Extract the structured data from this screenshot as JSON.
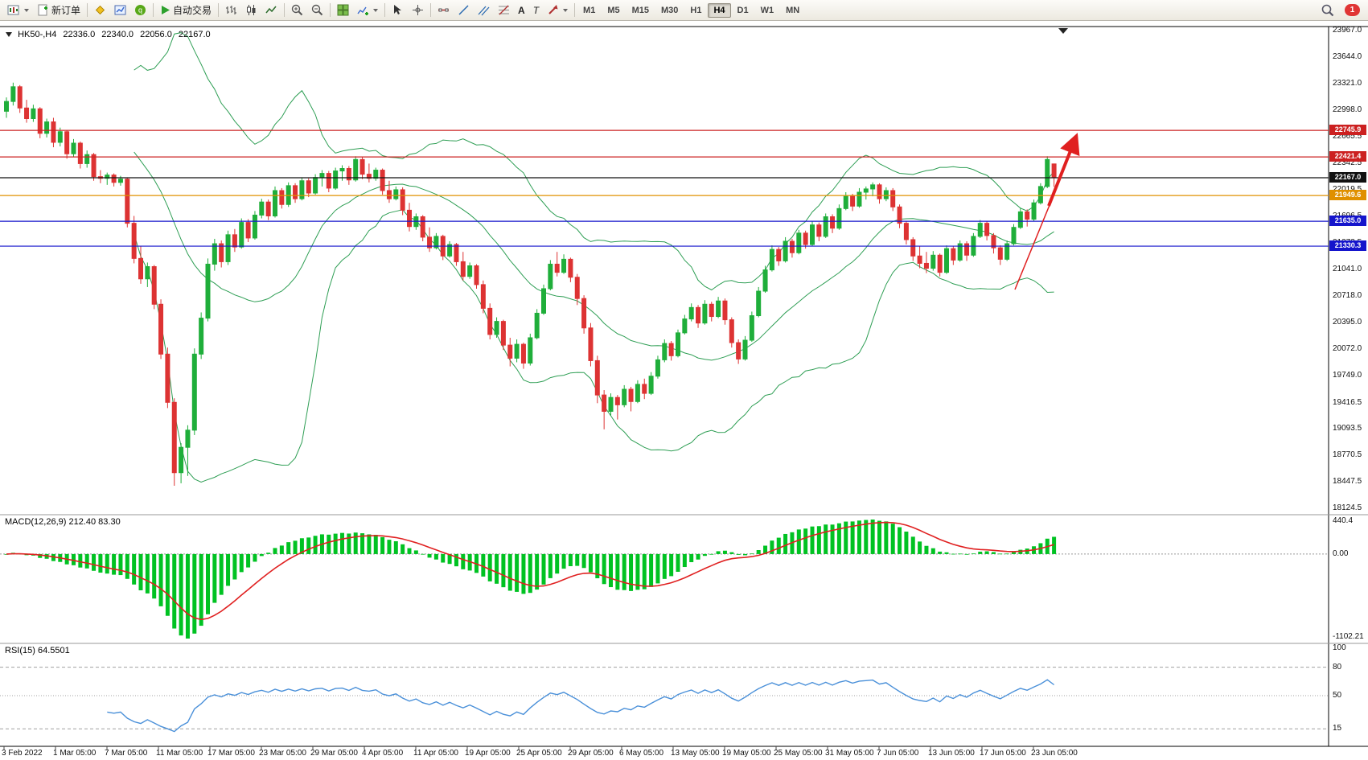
{
  "toolbar": {
    "new_order_label": "新订单",
    "autotrade_label": "自动交易",
    "text_tool_label": "A",
    "label_tool_label": "T",
    "timeframes": [
      "M1",
      "M5",
      "M15",
      "M30",
      "H1",
      "H4",
      "D1",
      "W1",
      "MN"
    ],
    "active_timeframe": "H4",
    "notification_count": "1"
  },
  "chart_header": {
    "symbol": "HK50-,H4",
    "open": "22336.0",
    "high": "22340.0",
    "low": "22056.0",
    "close": "22167.0"
  },
  "chart_data": {
    "type": "candlestick",
    "symbol": "HK50-",
    "timeframe": "H4",
    "last_ohlc": [
      22336.0,
      22340.0,
      22056.0,
      22167.0
    ],
    "ylim": [
      18124.5,
      23967.0
    ],
    "price_ticks": [
      "23967.0",
      "23644.0",
      "23321.0",
      "22998.0",
      "22665.5",
      "22342.5",
      "22019.5",
      "21696.5",
      "21373.5",
      "21041.0",
      "20718.0",
      "20395.0",
      "20072.0",
      "19749.0",
      "19416.5",
      "19093.5",
      "18770.5",
      "18447.5",
      "18124.5"
    ],
    "time_labels": [
      "3 Feb 2022",
      "1 Mar 05:00",
      "7 Mar 05:00",
      "11 Mar 05:00",
      "17 Mar 05:00",
      "23 Mar 05:00",
      "29 Mar 05:00",
      "4 Apr 05:00",
      "11 Apr 05:00",
      "19 Apr 05:00",
      "25 Apr 05:00",
      "29 Apr 05:00",
      "6 May 05:00",
      "13 May 05:00",
      "19 May 05:00",
      "25 May 05:00",
      "31 May 05:00",
      "7 Jun 05:00",
      "13 Jun 05:00",
      "17 Jun 05:00",
      "23 Jun 05:00"
    ],
    "colors": {
      "up": "#1fae3a",
      "down": "#dd3333",
      "bollinger": "#2e9e54",
      "arrow": "#e02020"
    },
    "overlays": {
      "bollinger": {
        "period": 20,
        "deviation": 2
      },
      "horizontal_levels": [
        {
          "price": 22745.9,
          "label": "22745.9",
          "color": "#cc2020"
        },
        {
          "price": 22421.4,
          "label": "22421.4",
          "color": "#cc2020"
        },
        {
          "price": 22167.0,
          "label": "22167.0",
          "color": "#111111"
        },
        {
          "price": 21949.6,
          "label": "21949.6",
          "color": "#e09000"
        },
        {
          "price": 21635.0,
          "label": "21635.0",
          "color": "#1515cc"
        },
        {
          "price": 21330.3,
          "label": "21330.3",
          "color": "#1515cc"
        }
      ]
    },
    "subcharts": [
      {
        "type": "macd",
        "label": "MACD(12,26,9) 212.40 83.30",
        "params": [
          12,
          26,
          9
        ],
        "current_values": [
          212.4,
          83.3
        ],
        "axis_labels": {
          "top": "440.4",
          "zero": "0.00",
          "bottom": "-1102.21"
        },
        "histogram_color": "#00c222",
        "signal_color": "#e02020"
      },
      {
        "type": "rsi",
        "label": "RSI(15) 64.5501",
        "period": 15,
        "current_value": 64.5501,
        "axis_labels": [
          "100",
          "80",
          "50",
          "15"
        ],
        "level_lines": [
          80,
          50,
          15
        ],
        "line_color": "#4a90d9"
      }
    ],
    "annotations": [
      {
        "type": "arrow",
        "direction": "up",
        "color": "#e02020"
      }
    ],
    "candles_ohlc": [
      [
        22980,
        23150,
        22900,
        23100
      ],
      [
        23100,
        23330,
        23050,
        23280
      ],
      [
        23280,
        23300,
        22960,
        23020
      ],
      [
        23020,
        23120,
        22840,
        22890
      ],
      [
        22890,
        23060,
        22850,
        23010
      ],
      [
        23010,
        23030,
        22650,
        22710
      ],
      [
        22710,
        22890,
        22660,
        22850
      ],
      [
        22850,
        22900,
        22540,
        22600
      ],
      [
        22600,
        22780,
        22550,
        22730
      ],
      [
        22730,
        22750,
        22400,
        22460
      ],
      [
        22460,
        22640,
        22420,
        22590
      ],
      [
        22590,
        22610,
        22280,
        22340
      ],
      [
        22340,
        22500,
        22290,
        22450
      ],
      [
        22450,
        22470,
        22130,
        22180
      ],
      [
        22180,
        22260,
        22100,
        22160
      ],
      [
        22160,
        22230,
        22080,
        22200
      ],
      [
        22200,
        22220,
        22060,
        22110
      ],
      [
        22110,
        22190,
        22070,
        22150
      ],
      [
        22150,
        22170,
        21560,
        21610
      ],
      [
        21610,
        21700,
        21120,
        21180
      ],
      [
        21180,
        21330,
        20870,
        20930
      ],
      [
        20930,
        21130,
        20830,
        21080
      ],
      [
        21080,
        21100,
        20560,
        20620
      ],
      [
        20620,
        20680,
        19950,
        20010
      ],
      [
        20010,
        20090,
        19350,
        19420
      ],
      [
        19420,
        19470,
        18400,
        18560
      ],
      [
        18560,
        18920,
        18430,
        18870
      ],
      [
        18870,
        19140,
        18520,
        19080
      ],
      [
        19080,
        20080,
        19020,
        20010
      ],
      [
        20010,
        20520,
        19950,
        20450
      ],
      [
        20450,
        21180,
        20410,
        21110
      ],
      [
        21110,
        21420,
        21030,
        21360
      ],
      [
        21360,
        21400,
        21070,
        21140
      ],
      [
        21140,
        21520,
        21100,
        21470
      ],
      [
        21470,
        21540,
        21260,
        21320
      ],
      [
        21320,
        21670,
        21300,
        21620
      ],
      [
        21620,
        21660,
        21380,
        21430
      ],
      [
        21430,
        21760,
        21410,
        21710
      ],
      [
        21710,
        21910,
        21670,
        21870
      ],
      [
        21870,
        21900,
        21650,
        21700
      ],
      [
        21700,
        22060,
        21680,
        22010
      ],
      [
        22010,
        22040,
        21790,
        21840
      ],
      [
        21840,
        22110,
        21810,
        22070
      ],
      [
        22070,
        22100,
        21860,
        21910
      ],
      [
        21910,
        22170,
        21890,
        22130
      ],
      [
        22130,
        22160,
        21930,
        21980
      ],
      [
        21980,
        22210,
        21960,
        22170
      ],
      [
        22170,
        22260,
        22060,
        22220
      ],
      [
        22220,
        22250,
        21990,
        22040
      ],
      [
        22040,
        22290,
        22020,
        22250
      ],
      [
        22250,
        22320,
        22130,
        22280
      ],
      [
        22280,
        22310,
        22080,
        22140
      ],
      [
        22140,
        22430,
        22120,
        22390
      ],
      [
        22390,
        22420,
        22150,
        22210
      ],
      [
        22210,
        22340,
        22110,
        22160
      ],
      [
        22160,
        22290,
        22130,
        22260
      ],
      [
        22260,
        22280,
        21960,
        22010
      ],
      [
        22010,
        22130,
        21860,
        21910
      ],
      [
        21910,
        22060,
        21890,
        22020
      ],
      [
        22020,
        22050,
        21710,
        21770
      ],
      [
        21770,
        21860,
        21510,
        21570
      ],
      [
        21570,
        21730,
        21530,
        21690
      ],
      [
        21690,
        21710,
        21390,
        21440
      ],
      [
        21440,
        21560,
        21260,
        21310
      ],
      [
        21310,
        21490,
        21290,
        21450
      ],
      [
        21450,
        21470,
        21160,
        21210
      ],
      [
        21210,
        21390,
        21190,
        21350
      ],
      [
        21350,
        21370,
        21090,
        21140
      ],
      [
        21140,
        21260,
        20910,
        20960
      ],
      [
        20960,
        21130,
        20930,
        21090
      ],
      [
        21090,
        21110,
        20810,
        20860
      ],
      [
        20860,
        20910,
        20510,
        20570
      ],
      [
        20570,
        20630,
        20190,
        20250
      ],
      [
        20250,
        20460,
        20210,
        20410
      ],
      [
        20410,
        20430,
        20060,
        20120
      ],
      [
        20120,
        20210,
        19860,
        19960
      ],
      [
        19960,
        20190,
        19910,
        20130
      ],
      [
        20130,
        20150,
        19830,
        19900
      ],
      [
        19900,
        20260,
        19870,
        20210
      ],
      [
        20210,
        20560,
        20190,
        20510
      ],
      [
        20510,
        20860,
        20490,
        20810
      ],
      [
        20810,
        21160,
        20790,
        21110
      ],
      [
        21110,
        21260,
        20960,
        21010
      ],
      [
        21010,
        21230,
        20990,
        21170
      ],
      [
        21170,
        21190,
        20890,
        20950
      ],
      [
        20950,
        20990,
        20610,
        20690
      ],
      [
        20690,
        20730,
        20260,
        20330
      ],
      [
        20330,
        20390,
        19860,
        19930
      ],
      [
        19930,
        19990,
        19410,
        19510
      ],
      [
        19510,
        19570,
        19090,
        19310
      ],
      [
        19310,
        19530,
        19260,
        19480
      ],
      [
        19480,
        19510,
        19210,
        19390
      ],
      [
        19390,
        19630,
        19360,
        19580
      ],
      [
        19580,
        19610,
        19310,
        19430
      ],
      [
        19430,
        19690,
        19410,
        19640
      ],
      [
        19640,
        19710,
        19460,
        19530
      ],
      [
        19530,
        19790,
        19510,
        19740
      ],
      [
        19740,
        19990,
        19710,
        19940
      ],
      [
        19940,
        20190,
        19910,
        20140
      ],
      [
        20140,
        20170,
        19930,
        19990
      ],
      [
        19990,
        20310,
        19970,
        20270
      ],
      [
        20270,
        20490,
        20250,
        20440
      ],
      [
        20440,
        20630,
        20410,
        20580
      ],
      [
        20580,
        20610,
        20330,
        20390
      ],
      [
        20390,
        20670,
        20370,
        20620
      ],
      [
        20620,
        20650,
        20410,
        20470
      ],
      [
        20470,
        20710,
        20450,
        20660
      ],
      [
        20660,
        20690,
        20370,
        20430
      ],
      [
        20430,
        20460,
        20090,
        20150
      ],
      [
        20150,
        20190,
        19890,
        19950
      ],
      [
        19950,
        20230,
        19930,
        20180
      ],
      [
        20180,
        20530,
        20160,
        20480
      ],
      [
        20480,
        20830,
        20460,
        20780
      ],
      [
        20780,
        21090,
        20760,
        21040
      ],
      [
        21040,
        21340,
        21020,
        21290
      ],
      [
        21290,
        21320,
        21090,
        21150
      ],
      [
        21150,
        21440,
        21130,
        21390
      ],
      [
        21390,
        21420,
        21190,
        21250
      ],
      [
        21250,
        21530,
        21230,
        21490
      ],
      [
        21490,
        21520,
        21300,
        21350
      ],
      [
        21350,
        21640,
        21330,
        21590
      ],
      [
        21590,
        21620,
        21390,
        21450
      ],
      [
        21450,
        21730,
        21430,
        21690
      ],
      [
        21690,
        21720,
        21490,
        21550
      ],
      [
        21550,
        21840,
        21530,
        21790
      ],
      [
        21790,
        21990,
        21770,
        21940
      ],
      [
        21940,
        21970,
        21760,
        21820
      ],
      [
        21820,
        22040,
        21800,
        21990
      ],
      [
        21990,
        22060,
        21900,
        22030
      ],
      [
        22030,
        22110,
        21940,
        22080
      ],
      [
        22080,
        22100,
        21850,
        21910
      ],
      [
        21910,
        22050,
        21880,
        22010
      ],
      [
        22010,
        22040,
        21760,
        21810
      ],
      [
        21810,
        21840,
        21550,
        21610
      ],
      [
        21610,
        21640,
        21350,
        21410
      ],
      [
        21410,
        21440,
        21150,
        21210
      ],
      [
        21210,
        21330,
        21060,
        21120
      ],
      [
        21120,
        21260,
        21000,
        21060
      ],
      [
        21060,
        21270,
        21030,
        21220
      ],
      [
        21220,
        21240,
        20960,
        21010
      ],
      [
        21010,
        21340,
        20990,
        21300
      ],
      [
        21300,
        21330,
        21100,
        21160
      ],
      [
        21160,
        21400,
        21140,
        21360
      ],
      [
        21360,
        21390,
        21150,
        21220
      ],
      [
        21220,
        21490,
        21200,
        21450
      ],
      [
        21450,
        21650,
        21430,
        21610
      ],
      [
        21610,
        21640,
        21400,
        21460
      ],
      [
        21460,
        21490,
        21240,
        21310
      ],
      [
        21310,
        21340,
        21100,
        21170
      ],
      [
        21170,
        21400,
        21150,
        21360
      ],
      [
        21360,
        21600,
        21340,
        21560
      ],
      [
        21560,
        21800,
        21540,
        21750
      ],
      [
        21750,
        21780,
        21570,
        21660
      ],
      [
        21660,
        21900,
        21640,
        21860
      ],
      [
        21860,
        22100,
        21840,
        22060
      ],
      [
        22060,
        22430,
        22040,
        22390
      ],
      [
        22336,
        22340,
        22056,
        22167
      ]
    ]
  }
}
